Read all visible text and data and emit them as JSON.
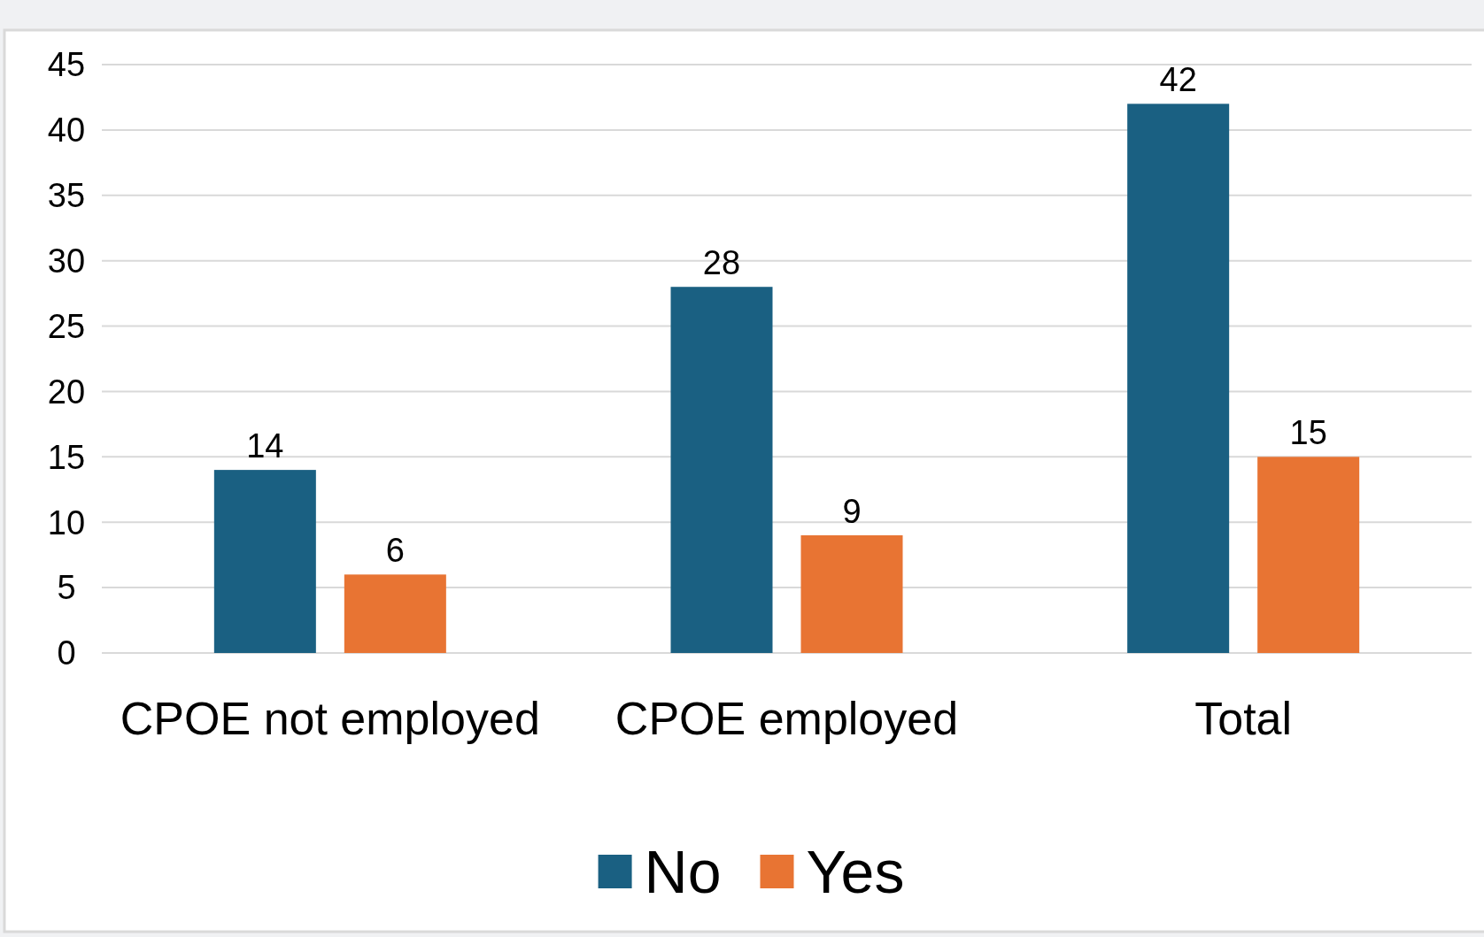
{
  "chart_data": {
    "type": "bar",
    "categories": [
      "CPOE not employed",
      "CPOE employed",
      "Total"
    ],
    "series": [
      {
        "name": "No",
        "color": "#1a6082",
        "values": [
          14,
          28,
          42
        ]
      },
      {
        "name": "Yes",
        "color": "#e87433",
        "values": [
          6,
          9,
          15
        ]
      }
    ],
    "ylim": [
      0,
      45
    ],
    "yticks": [
      0,
      5,
      10,
      15,
      20,
      25,
      30,
      35,
      40,
      45
    ],
    "grid": "y",
    "legend": "bottom",
    "data_labels": true
  }
}
